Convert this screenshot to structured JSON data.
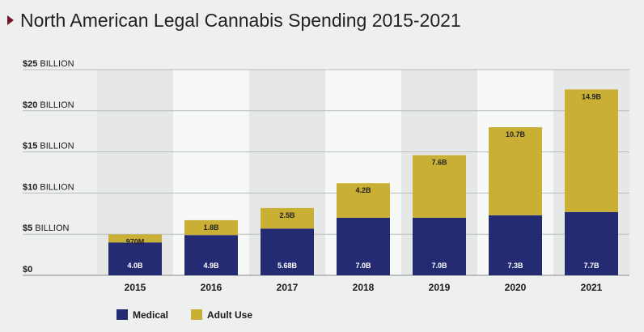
{
  "chart_data": {
    "type": "bar",
    "stacked": true,
    "title": "North American Legal Cannabis Spending 2015-2021",
    "categories": [
      "2015",
      "2016",
      "2017",
      "2018",
      "2019",
      "2020",
      "2021"
    ],
    "series": [
      {
        "name": "Medical",
        "color": "#252b73",
        "values": [
          4.0,
          4.9,
          5.68,
          7.0,
          7.0,
          7.3,
          7.7
        ],
        "labels": [
          "4.0B",
          "4.9B",
          "5.68B",
          "7.0B",
          "7.0B",
          "7.3B",
          "7.7B"
        ]
      },
      {
        "name": "Adult Use",
        "color": "#c9b035",
        "values": [
          0.97,
          1.8,
          2.5,
          4.2,
          7.6,
          10.7,
          14.9
        ],
        "labels": [
          "970M",
          "1.8B",
          "2.5B",
          "4.2B",
          "7.6B",
          "10.7B",
          "14.9B"
        ]
      }
    ],
    "ylim": [
      0,
      25
    ],
    "yticks": [
      {
        "value": 0,
        "label": "$0"
      },
      {
        "value": 5,
        "label": "$5 BILLION"
      },
      {
        "value": 10,
        "label": "$10 BILLION"
      },
      {
        "value": 15,
        "label": "$15 BILLION"
      },
      {
        "value": 20,
        "label": "$20 BILLION"
      },
      {
        "value": 25,
        "label": "$25 BILLION"
      }
    ],
    "grid": true,
    "legend_position": "bottom-left"
  }
}
